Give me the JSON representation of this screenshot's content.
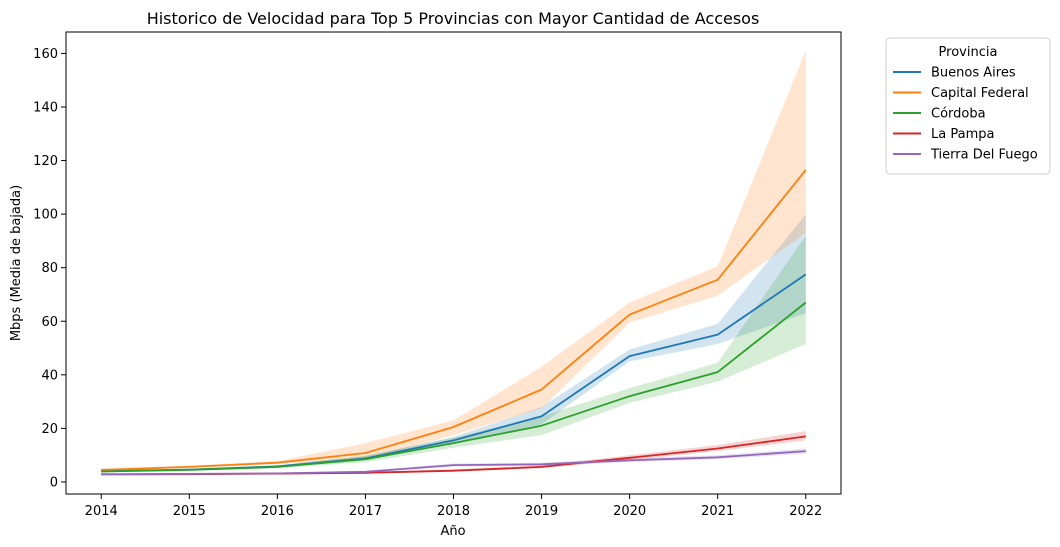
{
  "chart_data": {
    "type": "line",
    "title": "Historico de Velocidad para Top 5 Provincias con Mayor Cantidad de Accesos",
    "xlabel": "Año",
    "ylabel": "Mbps (Media de bajada)",
    "x": [
      2014,
      2015,
      2016,
      2017,
      2018,
      2019,
      2020,
      2021,
      2022
    ],
    "xlim": [
      2013.6,
      2022.4
    ],
    "ylim": [
      -4.5,
      168
    ],
    "yticks": [
      0,
      20,
      40,
      60,
      80,
      100,
      120,
      140,
      160
    ],
    "grid": false,
    "legend": {
      "title": "Provincia",
      "placement": "outside top-right"
    },
    "series": [
      {
        "name": "Buenos Aires",
        "color": "#1f77b4",
        "values": [
          4,
          4.6,
          5.8,
          8.8,
          15.5,
          24.5,
          47,
          55,
          77.5
        ],
        "lower": [
          3.6,
          4.2,
          5.3,
          8.1,
          14.5,
          21.5,
          45,
          51.5,
          63
        ],
        "upper": [
          4.4,
          5.0,
          6.3,
          9.6,
          16.8,
          28,
          49.5,
          59,
          100
        ]
      },
      {
        "name": "Capital Federal",
        "color": "#ff7f0e",
        "values": [
          4.5,
          5.6,
          7.2,
          10.8,
          20.5,
          34.5,
          62.5,
          75.5,
          116.5
        ],
        "lower": [
          4.1,
          5.2,
          6.7,
          8.5,
          17.5,
          27.5,
          59.5,
          69.5,
          93
        ],
        "upper": [
          4.9,
          6.1,
          7.8,
          14.5,
          23,
          43,
          67,
          80.5,
          161
        ]
      },
      {
        "name": "Córdoba",
        "color": "#2ca02c",
        "values": [
          3.9,
          4.5,
          5.6,
          8.5,
          14.5,
          21,
          32,
          41,
          67
        ],
        "lower": [
          3.5,
          4.1,
          5.1,
          7.3,
          12.8,
          17.5,
          29.5,
          37.5,
          51.5
        ],
        "upper": [
          4.3,
          5.0,
          6.1,
          9.8,
          16.5,
          24.5,
          35,
          44.5,
          92
        ]
      },
      {
        "name": "La Pampa",
        "color": "#d62728",
        "values": [
          2.8,
          2.9,
          3.1,
          3.4,
          4.2,
          5.6,
          9.0,
          12.5,
          17
        ],
        "lower": [
          2.5,
          2.6,
          2.8,
          3.1,
          3.8,
          5.1,
          8.2,
          11.5,
          15.5
        ],
        "upper": [
          3.1,
          3.2,
          3.4,
          3.8,
          4.7,
          6.2,
          10,
          13.8,
          19
        ]
      },
      {
        "name": "Tierra Del Fuego",
        "color": "#9467bd",
        "values": [
          2.9,
          3.0,
          3.2,
          3.8,
          6.3,
          6.6,
          8.1,
          9.2,
          11.5
        ],
        "lower": [
          2.6,
          2.7,
          2.9,
          3.4,
          5.8,
          6.1,
          7.4,
          8.5,
          10.6
        ],
        "upper": [
          3.2,
          3.3,
          3.5,
          4.2,
          6.9,
          7.2,
          8.9,
          10,
          12.5
        ]
      }
    ]
  }
}
